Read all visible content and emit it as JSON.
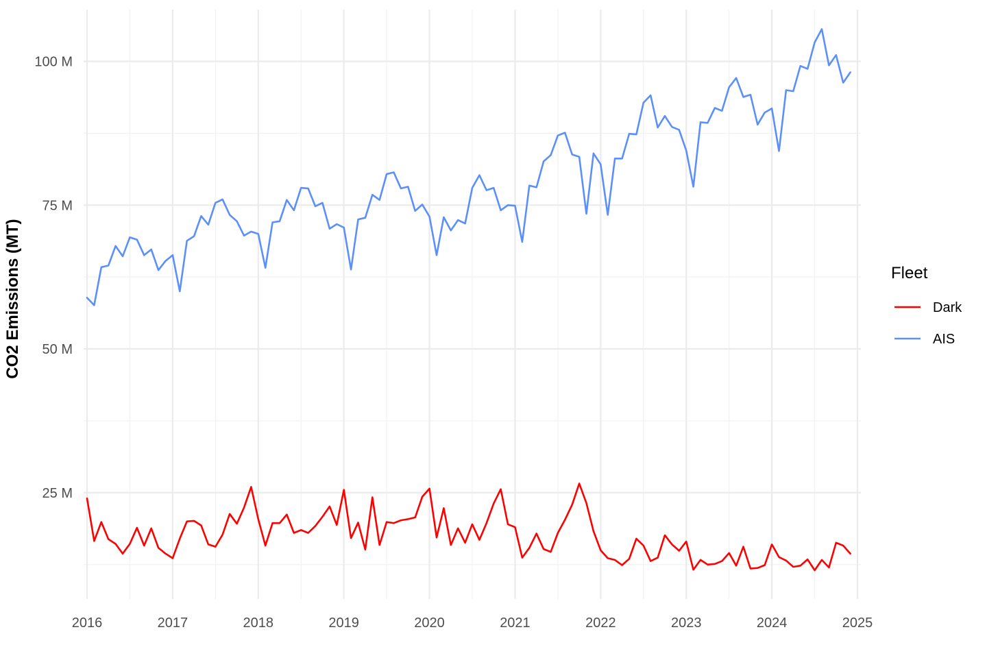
{
  "chart_data": {
    "type": "line",
    "ylabel": "CO2 Emissions (MT)",
    "xlabel": "",
    "xlim": [
      2015.96,
      2025.04
    ],
    "ylim": [
      6.5,
      109
    ],
    "x_ticks": [
      2016,
      2017,
      2018,
      2019,
      2020,
      2021,
      2022,
      2023,
      2024,
      2025
    ],
    "x_tick_labels": [
      "2016",
      "2017",
      "2018",
      "2019",
      "2020",
      "2021",
      "2022",
      "2023",
      "2024",
      "2025"
    ],
    "y_ticks": [
      25,
      50,
      75,
      100
    ],
    "y_tick_labels": [
      "25 M",
      "50 M",
      "75 M",
      "100 M"
    ],
    "grid": true,
    "legend": {
      "title": "Fleet",
      "placement": "right",
      "entries": [
        {
          "label": "Dark",
          "color": "#ff0000"
        },
        {
          "label": "AIS",
          "color": "#5b8ff9"
        }
      ]
    },
    "x_start": "2016-01",
    "x_step": "month",
    "series": [
      {
        "name": "Dark",
        "color": "#ff0000",
        "values": [
          24.0,
          16.6,
          19.9,
          16.9,
          16.1,
          14.4,
          16.1,
          18.9,
          15.8,
          18.8,
          15.4,
          14.4,
          13.6,
          17.0,
          20.0,
          20.1,
          19.3,
          16.0,
          15.6,
          17.7,
          21.3,
          19.6,
          22.4,
          26.0,
          20.4,
          15.8,
          19.7,
          19.7,
          21.2,
          18.0,
          18.5,
          18.0,
          19.2,
          20.8,
          22.6,
          19.4,
          25.5,
          17.1,
          19.8,
          15.1,
          24.2,
          15.9,
          19.9,
          19.7,
          20.2,
          20.4,
          20.7,
          24.3,
          25.7,
          17.2,
          22.3,
          15.9,
          18.8,
          16.3,
          19.5,
          16.8,
          19.7,
          23.1,
          25.6,
          19.5,
          19.0,
          13.7,
          15.4,
          17.9,
          15.2,
          14.7,
          18.0,
          20.3,
          22.9,
          26.6,
          23.2,
          18.3,
          15.0,
          13.6,
          13.3,
          12.4,
          13.5,
          17.0,
          15.8,
          13.1,
          13.7,
          17.6,
          16.0,
          14.9,
          16.5,
          11.6,
          13.3,
          12.5,
          12.6,
          13.1,
          14.5,
          12.3,
          15.6,
          11.8,
          11.9,
          12.4,
          16.0,
          13.8,
          13.2,
          12.1,
          12.3,
          13.4,
          11.5,
          13.3,
          12.0,
          16.3,
          15.8,
          14.4
        ]
      },
      {
        "name": "AIS",
        "color": "#5b8ff9",
        "values": [
          58.9,
          57.6,
          64.2,
          64.5,
          67.9,
          66.1,
          69.4,
          69.0,
          66.3,
          67.3,
          63.7,
          65.3,
          66.3,
          60.0,
          68.8,
          69.6,
          73.1,
          71.6,
          75.4,
          76.0,
          73.3,
          72.2,
          69.7,
          70.4,
          70.0,
          64.1,
          72.0,
          72.2,
          75.9,
          74.1,
          78.0,
          77.9,
          74.8,
          75.4,
          70.9,
          71.7,
          71.1,
          63.8,
          72.5,
          72.8,
          76.8,
          75.9,
          80.4,
          80.7,
          77.9,
          78.2,
          74.0,
          75.1,
          73.0,
          66.3,
          72.9,
          70.6,
          72.4,
          71.8,
          78.0,
          80.2,
          77.6,
          78.0,
          74.1,
          75.0,
          74.9,
          68.6,
          78.4,
          78.1,
          82.6,
          83.7,
          87.1,
          87.6,
          83.8,
          83.4,
          73.5,
          84.0,
          82.1,
          73.3,
          83.1,
          83.1,
          87.4,
          87.3,
          92.8,
          94.1,
          88.5,
          90.5,
          88.6,
          88.1,
          84.5,
          78.2,
          89.4,
          89.3,
          91.9,
          91.4,
          95.5,
          97.1,
          93.8,
          94.2,
          89.0,
          91.1,
          91.8,
          84.4,
          95.0,
          94.8,
          99.2,
          98.7,
          103.3,
          105.6,
          99.3,
          101.1,
          96.3,
          98.1
        ]
      }
    ]
  }
}
